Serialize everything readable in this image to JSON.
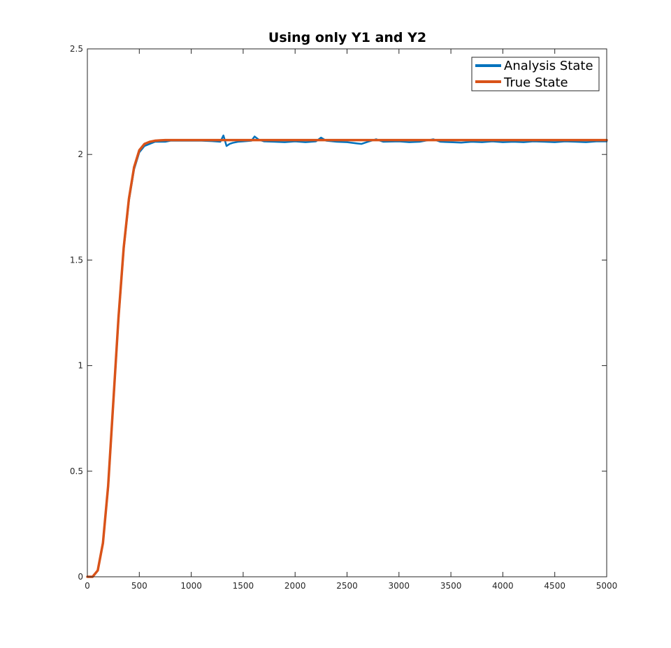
{
  "chart_data": {
    "type": "line",
    "title": "Using only Y1 and Y2",
    "xlabel": "",
    "ylabel": "",
    "xlim": [
      0,
      5000
    ],
    "ylim": [
      0,
      2.5
    ],
    "xticks": [
      0,
      500,
      1000,
      1500,
      2000,
      2500,
      3000,
      3500,
      4000,
      4500,
      5000
    ],
    "yticks": [
      0,
      0.5,
      1,
      1.5,
      2,
      2.5
    ],
    "xtick_labels": [
      "0",
      "500",
      "1000",
      "1500",
      "2000",
      "2500",
      "3000",
      "3500",
      "4000",
      "4500",
      "5000"
    ],
    "ytick_labels": [
      "0",
      "0.5",
      "1",
      "1.5",
      "2",
      "2.5"
    ],
    "grid": false,
    "legend_position": "top-right",
    "series": [
      {
        "name": "Analysis State",
        "color": "#0072BD",
        "x": [
          0,
          50,
          100,
          150,
          200,
          250,
          300,
          350,
          400,
          450,
          500,
          550,
          600,
          650,
          700,
          750,
          800,
          900,
          1000,
          1100,
          1200,
          1280,
          1310,
          1340,
          1370,
          1400,
          1450,
          1500,
          1580,
          1610,
          1650,
          1700,
          1800,
          1900,
          2000,
          2100,
          2200,
          2250,
          2300,
          2400,
          2500,
          2600,
          2640,
          2700,
          2780,
          2850,
          3000,
          3100,
          3200,
          3330,
          3400,
          3500,
          3600,
          3700,
          3800,
          3900,
          4000,
          4100,
          4200,
          4300,
          4400,
          4500,
          4600,
          4700,
          4800,
          4900,
          5000
        ],
        "values": [
          0.0,
          0.0,
          0.03,
          0.16,
          0.42,
          0.82,
          1.22,
          1.55,
          1.78,
          1.93,
          2.01,
          2.04,
          2.05,
          2.06,
          2.06,
          2.06,
          2.065,
          2.065,
          2.065,
          2.065,
          2.063,
          2.06,
          2.09,
          2.04,
          2.05,
          2.055,
          2.06,
          2.062,
          2.065,
          2.085,
          2.07,
          2.062,
          2.06,
          2.058,
          2.062,
          2.058,
          2.062,
          2.08,
          2.065,
          2.06,
          2.058,
          2.052,
          2.05,
          2.06,
          2.072,
          2.06,
          2.062,
          2.058,
          2.06,
          2.072,
          2.06,
          2.058,
          2.056,
          2.06,
          2.058,
          2.062,
          2.058,
          2.06,
          2.058,
          2.062,
          2.06,
          2.058,
          2.062,
          2.06,
          2.058,
          2.062,
          2.062
        ]
      },
      {
        "name": "True State",
        "color": "#D95319",
        "x": [
          0,
          50,
          100,
          150,
          200,
          250,
          300,
          350,
          400,
          450,
          500,
          550,
          600,
          650,
          700,
          750,
          800,
          900,
          1000,
          1500,
          2000,
          2500,
          3000,
          3500,
          4000,
          4500,
          5000
        ],
        "values": [
          0.0,
          0.0,
          0.03,
          0.16,
          0.43,
          0.83,
          1.23,
          1.56,
          1.79,
          1.94,
          2.02,
          2.05,
          2.06,
          2.065,
          2.067,
          2.068,
          2.068,
          2.068,
          2.068,
          2.068,
          2.068,
          2.068,
          2.068,
          2.068,
          2.068,
          2.068,
          2.068
        ]
      }
    ]
  }
}
